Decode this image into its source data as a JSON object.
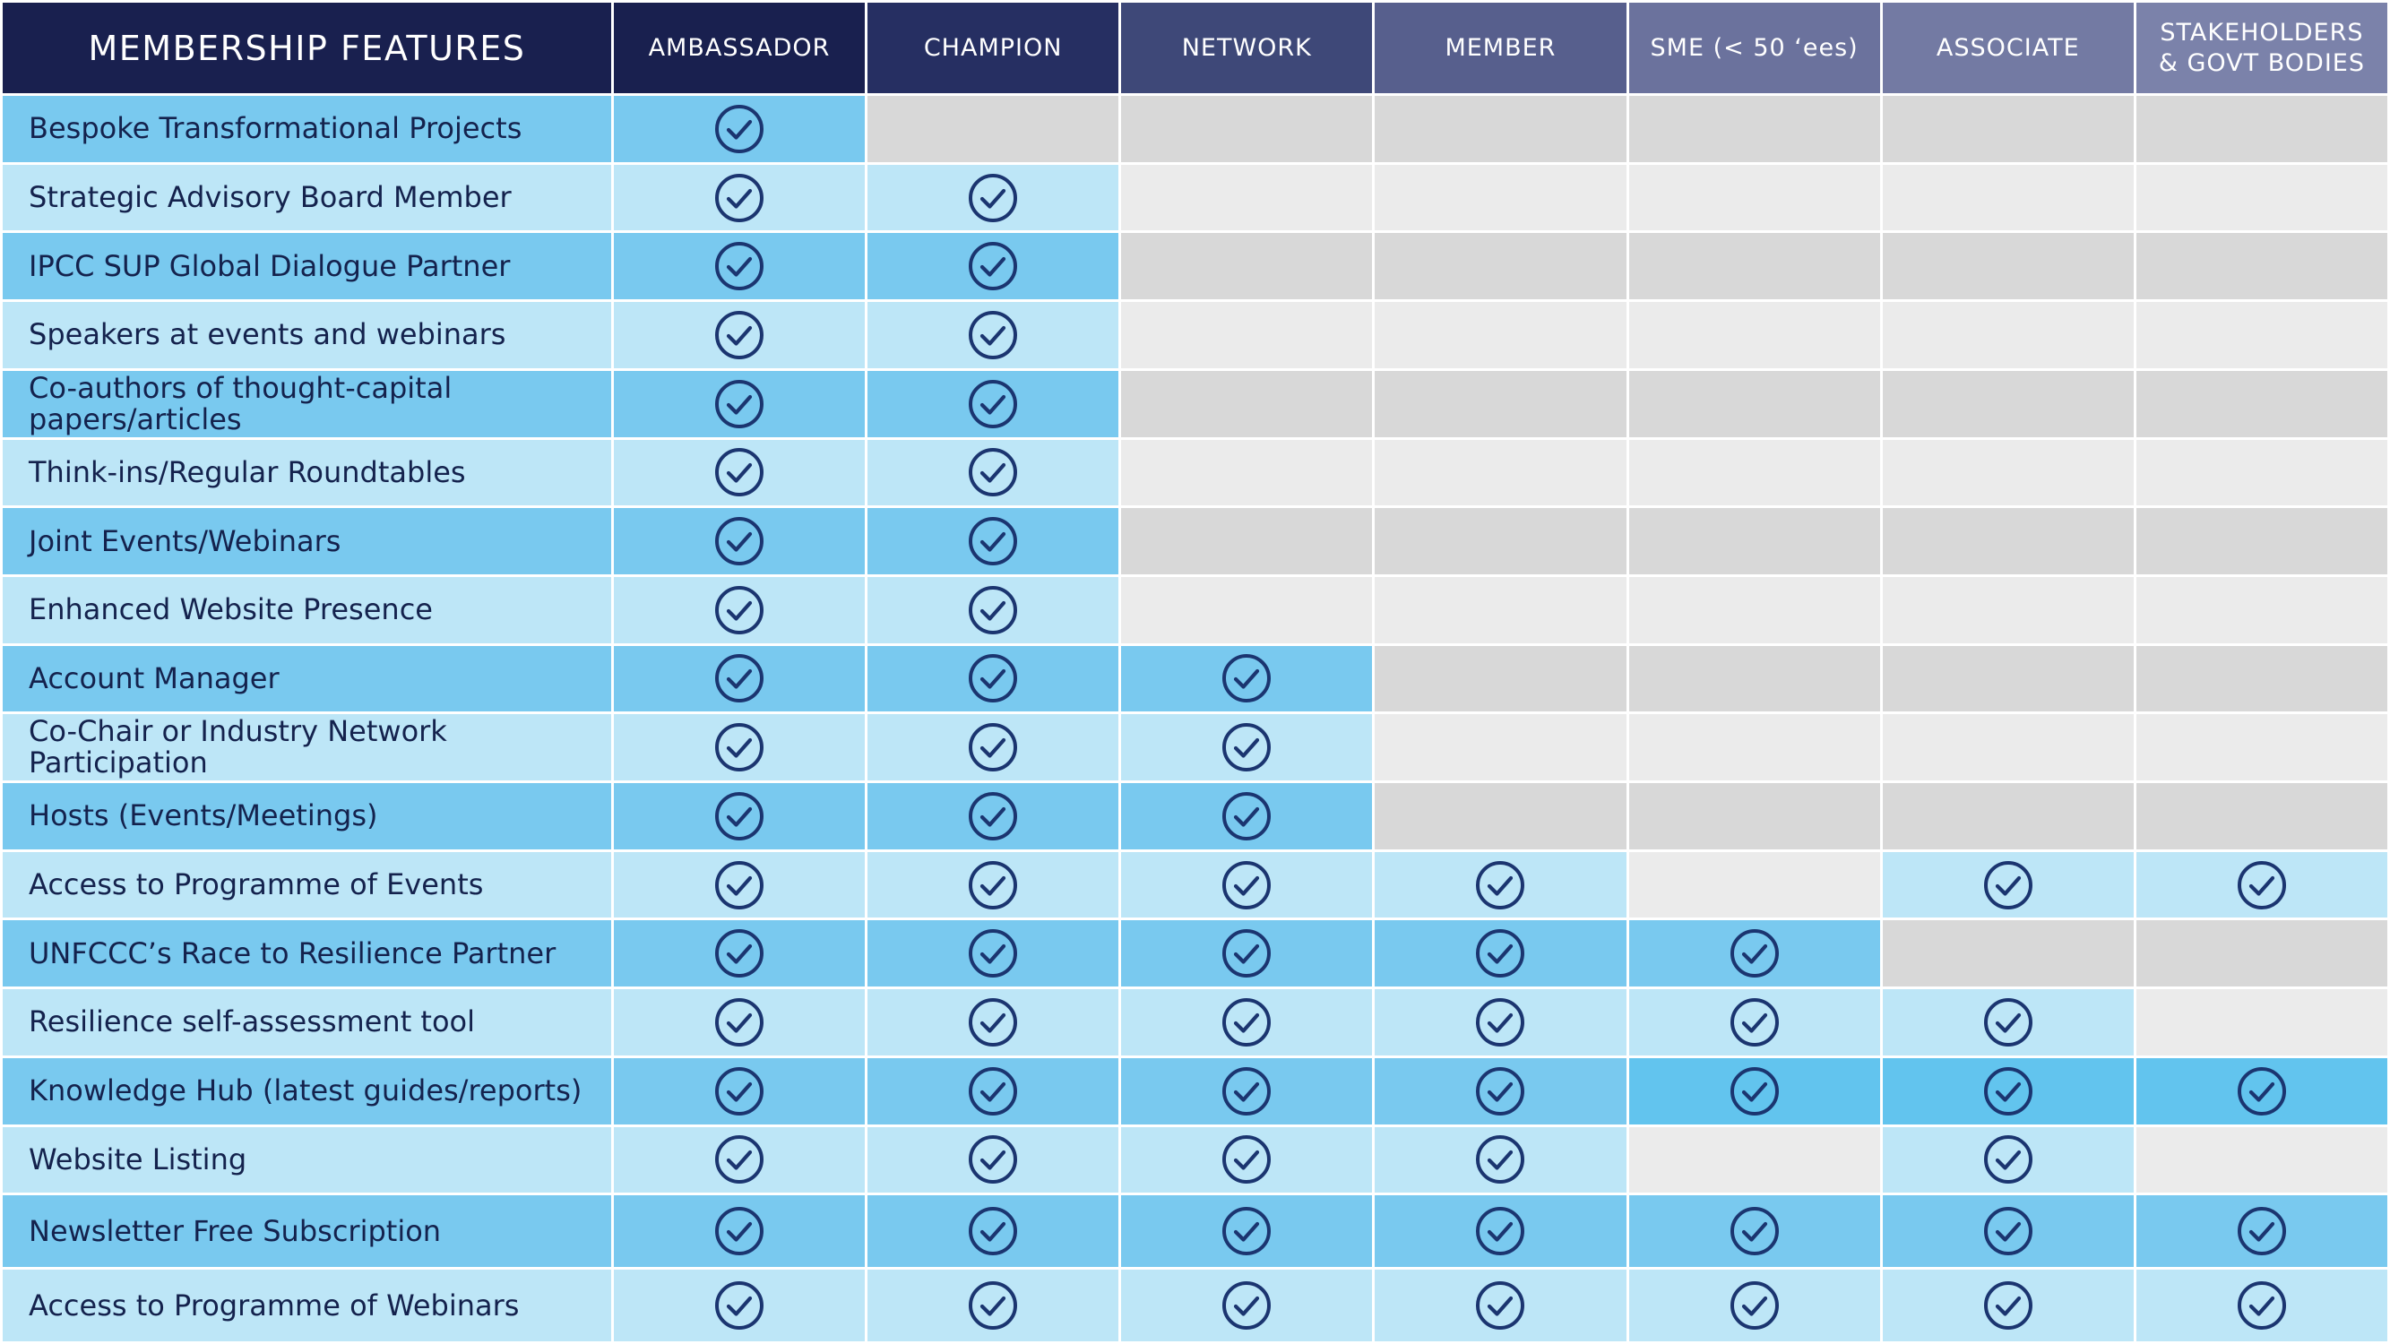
{
  "table": {
    "header": {
      "features_label": "MEMBERSHIP FEATURES",
      "tiers": [
        "AMBASSADOR",
        "CHAMPION",
        "NETWORK",
        "MEMBER",
        "SME (< 50 ‘ees)",
        "ASSOCIATE",
        "STAKEHOLDERS\n& GOVT BODIES"
      ]
    },
    "rows": [
      {
        "feature": "Bespoke Transformational Projects",
        "included": [
          true,
          false,
          false,
          false,
          false,
          false,
          false
        ]
      },
      {
        "feature": "Strategic Advisory Board Member",
        "included": [
          true,
          true,
          false,
          false,
          false,
          false,
          false
        ]
      },
      {
        "feature": "IPCC SUP Global Dialogue Partner",
        "included": [
          true,
          true,
          false,
          false,
          false,
          false,
          false
        ]
      },
      {
        "feature": "Speakers at events and webinars",
        "included": [
          true,
          true,
          false,
          false,
          false,
          false,
          false
        ]
      },
      {
        "feature": "Co-authors of thought-capital papers/articles",
        "included": [
          true,
          true,
          false,
          false,
          false,
          false,
          false
        ]
      },
      {
        "feature": "Think-ins/Regular Roundtables",
        "included": [
          true,
          true,
          false,
          false,
          false,
          false,
          false
        ]
      },
      {
        "feature": "Joint Events/Webinars",
        "included": [
          true,
          true,
          false,
          false,
          false,
          false,
          false
        ]
      },
      {
        "feature": "Enhanced Website Presence",
        "included": [
          true,
          true,
          false,
          false,
          false,
          false,
          false
        ]
      },
      {
        "feature": "Account Manager",
        "included": [
          true,
          true,
          true,
          false,
          false,
          false,
          false
        ]
      },
      {
        "feature": "Co-Chair or Industry Network Participation",
        "included": [
          true,
          true,
          true,
          false,
          false,
          false,
          false
        ]
      },
      {
        "feature": "Hosts (Events/Meetings)",
        "included": [
          true,
          true,
          true,
          false,
          false,
          false,
          false
        ]
      },
      {
        "feature": "Access to Programme of Events",
        "included": [
          true,
          true,
          true,
          true,
          false,
          true,
          true
        ]
      },
      {
        "feature": "UNFCCC’s Race to Resilience Partner",
        "included": [
          true,
          true,
          true,
          true,
          true,
          false,
          false
        ]
      },
      {
        "feature": "Resilience self-assessment tool",
        "included": [
          true,
          true,
          true,
          true,
          true,
          true,
          false
        ]
      },
      {
        "feature": "Knowledge Hub (latest guides/reports)",
        "included": [
          true,
          true,
          true,
          true,
          true,
          true,
          true
        ]
      },
      {
        "feature": "Website Listing",
        "included": [
          true,
          true,
          true,
          true,
          false,
          true,
          false
        ]
      },
      {
        "feature": "Newsletter Free Subscription",
        "included": [
          true,
          true,
          true,
          true,
          true,
          true,
          true
        ]
      },
      {
        "feature": "Access to Programme of Webinars",
        "included": [
          true,
          true,
          true,
          true,
          true,
          true,
          true
        ]
      }
    ]
  },
  "icons": {
    "included": "check-circle-icon"
  },
  "colors": {
    "header_feature": "#19204f",
    "header_tiers": [
      "#19204f",
      "#262f62",
      "#3e4878",
      "#575f8d",
      "#6b729d",
      "#737aa3",
      "#7b82aa"
    ],
    "row_dark": "#79c9ef",
    "row_light": "#bde6f7",
    "row_extra_bright": "#62c4ee",
    "empty_dark": "#d8d8d8",
    "empty_light": "#ebebeb",
    "check": "#1b3570",
    "feature_text": "#14224d"
  }
}
